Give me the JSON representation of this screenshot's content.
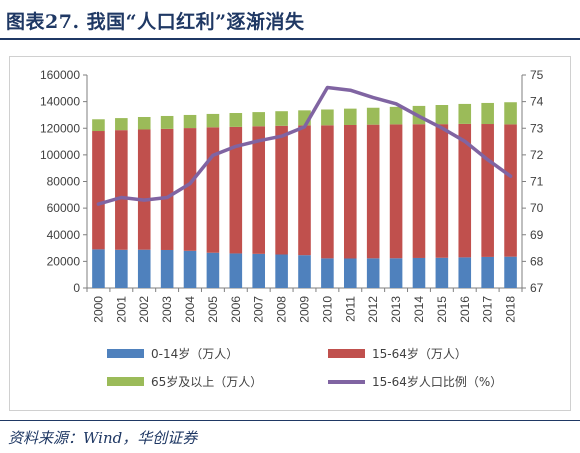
{
  "header": {
    "title": "图表27. 我国“人口红利”逐渐消失"
  },
  "chart_data": {
    "type": "bar",
    "stacked": true,
    "categories": [
      "2000",
      "2001",
      "2002",
      "2003",
      "2004",
      "2005",
      "2006",
      "2007",
      "2008",
      "2009",
      "2010",
      "2011",
      "2012",
      "2013",
      "2014",
      "2015",
      "2016",
      "2017",
      "2018"
    ],
    "series": [
      {
        "name": "0-14岁（万人）",
        "color": "#4f81bd",
        "values": [
          29012,
          28716,
          28774,
          28559,
          27947,
          26504,
          25961,
          25660,
          25166,
          24659,
          22259,
          22164,
          22287,
          22329,
          22558,
          22715,
          23008,
          23348,
          23523
        ]
      },
      {
        "name": "15-64岁（万人）",
        "color": "#c0504d",
        "values": [
          88910,
          89849,
          90302,
          90976,
          92184,
          94197,
          95068,
          95833,
          96680,
          97484,
          99938,
          100283,
          100403,
          100582,
          100469,
          100361,
          100260,
          99829,
          99357
        ]
      },
      {
        "name": "65岁及以上（万人）",
        "color": "#9bbb59",
        "values": [
          8821,
          9062,
          9377,
          9692,
          9857,
          10055,
          10419,
          10636,
          10956,
          11307,
          11894,
          12288,
          12714,
          13161,
          13755,
          14386,
          15003,
          15831,
          16658
        ]
      }
    ],
    "line_series": {
      "name": "15-64岁人口比例（%）",
      "color": "#8064a2",
      "axis": "right",
      "values": [
        70.15,
        70.4,
        70.3,
        70.4,
        70.92,
        71.98,
        72.32,
        72.53,
        72.7,
        73.05,
        74.53,
        74.43,
        74.15,
        73.92,
        73.45,
        73.01,
        72.51,
        71.82,
        71.2
      ]
    },
    "y_left": {
      "min": 0,
      "max": 160000,
      "step": 20000,
      "ticks": [
        "0",
        "20000",
        "40000",
        "60000",
        "80000",
        "100000",
        "120000",
        "140000",
        "160000"
      ]
    },
    "y_right": {
      "min": 67,
      "max": 75,
      "step": 1,
      "ticks": [
        "67",
        "68",
        "69",
        "70",
        "71",
        "72",
        "73",
        "74",
        "75"
      ]
    },
    "grid": false,
    "legend": "bottom"
  },
  "legend": {
    "items": [
      {
        "label": "0-14岁（万人）",
        "color": "#4f81bd",
        "kind": "bar"
      },
      {
        "label": "15-64岁（万人）",
        "color": "#c0504d",
        "kind": "bar"
      },
      {
        "label": "65岁及以上（万人）",
        "color": "#9bbb59",
        "kind": "bar"
      },
      {
        "label": "15-64岁人口比例（%）",
        "color": "#8064a2",
        "kind": "line"
      }
    ]
  },
  "source": {
    "text": "资料来源：Wind，华创证券"
  }
}
